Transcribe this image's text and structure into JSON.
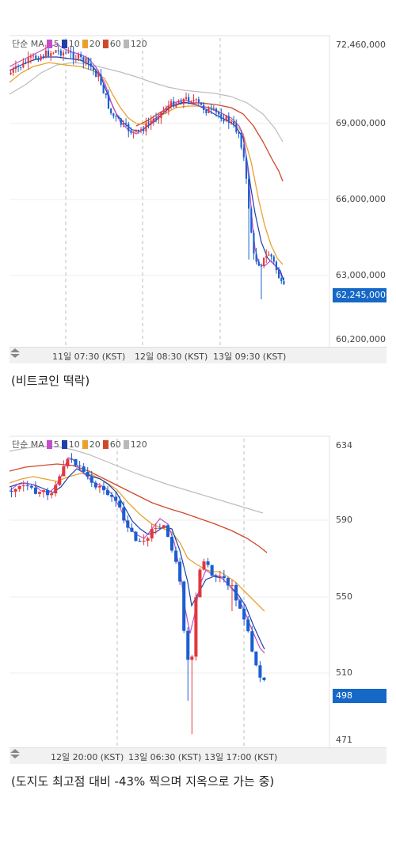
{
  "charts": [
    {
      "legend": {
        "prefix": "단순 MA",
        "periods": [
          "5",
          "10",
          "20",
          "60",
          "120"
        ]
      },
      "price_labels": [
        "72,460,000",
        "69,000,000",
        "66,000,000",
        "63,000,000",
        "60,200,000"
      ],
      "current_price": "62,245,000",
      "time_labels": [
        "11일 07:30 (KST)",
        "12일 08:30 (KST)",
        "13일 09:30 (KST)"
      ],
      "caption": "(비트코인 떡락)"
    },
    {
      "legend": {
        "prefix": "단순 MA",
        "periods": [
          "5",
          "10",
          "20",
          "60",
          "120"
        ]
      },
      "price_labels": [
        "634",
        "590",
        "550",
        "510",
        "471"
      ],
      "current_price": "498",
      "time_labels": [
        "12일 20:00 (KST)",
        "13일 06:30 (KST)",
        "13일 17:00 (KST)"
      ],
      "caption": "(도지도 최고점 대비 -43% 찍으며 지옥으로 가는 중)"
    }
  ],
  "colors": {
    "up": "#e0383e",
    "down": "#1a5fd0",
    "ma5": "#c44ec9",
    "ma10": "#1e3fa8",
    "ma20": "#e8a030",
    "ma60": "#d0482a",
    "ma120": "#b8b8b8",
    "badge": "#1668c7"
  }
}
